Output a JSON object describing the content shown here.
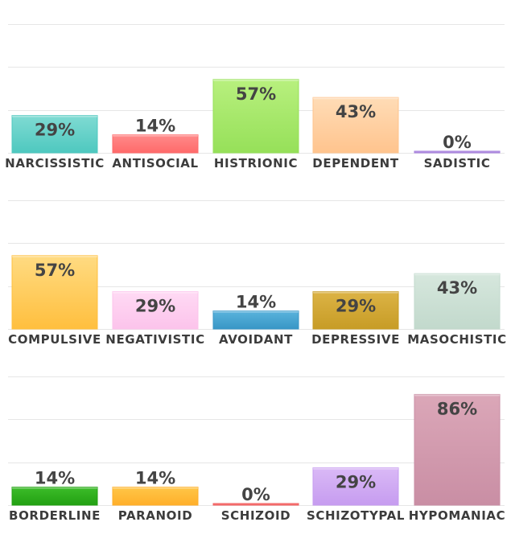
{
  "chart_data": [
    {
      "type": "bar",
      "ylim": [
        0,
        100
      ],
      "grid": true,
      "categories": [
        "NARCISSISTIC",
        "ANTISOCIAL",
        "HISTRIONIC",
        "DEPENDENT",
        "SADISTIC"
      ],
      "values": [
        29,
        14,
        57,
        43,
        0
      ],
      "value_labels": [
        "29%",
        "14%",
        "57%",
        "43%",
        "0%"
      ],
      "colors": [
        [
          "#80dbd3",
          "#4ec8bf"
        ],
        [
          "#ff8a8a",
          "#ff6a6a"
        ],
        [
          "#b8f07e",
          "#96e059"
        ],
        [
          "#ffdcb6",
          "#ffc48e"
        ],
        [
          "#cbb3ec",
          "#a57fdc"
        ]
      ]
    },
    {
      "type": "bar",
      "ylim": [
        0,
        100
      ],
      "grid": true,
      "categories": [
        "COMPULSIVE",
        "NEGATIVISTIC",
        "AVOIDANT",
        "DEPRESSIVE",
        "MASOCHISTIC"
      ],
      "values": [
        57,
        29,
        14,
        29,
        43
      ],
      "value_labels": [
        "57%",
        "29%",
        "14%",
        "29%",
        "43%"
      ],
      "colors": [
        [
          "#ffdb82",
          "#ffbf3e"
        ],
        [
          "#ffdaf4",
          "#fcc3eb"
        ],
        [
          "#5ab3dc",
          "#3896c6"
        ],
        [
          "#dcb345",
          "#c79c26"
        ],
        [
          "#d6e7dd",
          "#c2d9cc"
        ]
      ]
    },
    {
      "type": "bar",
      "ylim": [
        0,
        100
      ],
      "grid": true,
      "categories": [
        "BORDERLINE",
        "PARANOID",
        "SCHIZOID",
        "SCHIZOTYPAL",
        "HYPOMANIAC"
      ],
      "values": [
        14,
        14,
        0,
        29,
        86
      ],
      "value_labels": [
        "14%",
        "14%",
        "0%",
        "29%",
        "86%"
      ],
      "colors": [
        [
          "#3dbd2a",
          "#22a012"
        ],
        [
          "#ffc648",
          "#ffaf2a"
        ],
        [
          "#ff8a8a",
          "#f06060"
        ],
        [
          "#dab9f6",
          "#c69cf0"
        ],
        [
          "#dba7b8",
          "#c98ea4"
        ]
      ]
    }
  ]
}
